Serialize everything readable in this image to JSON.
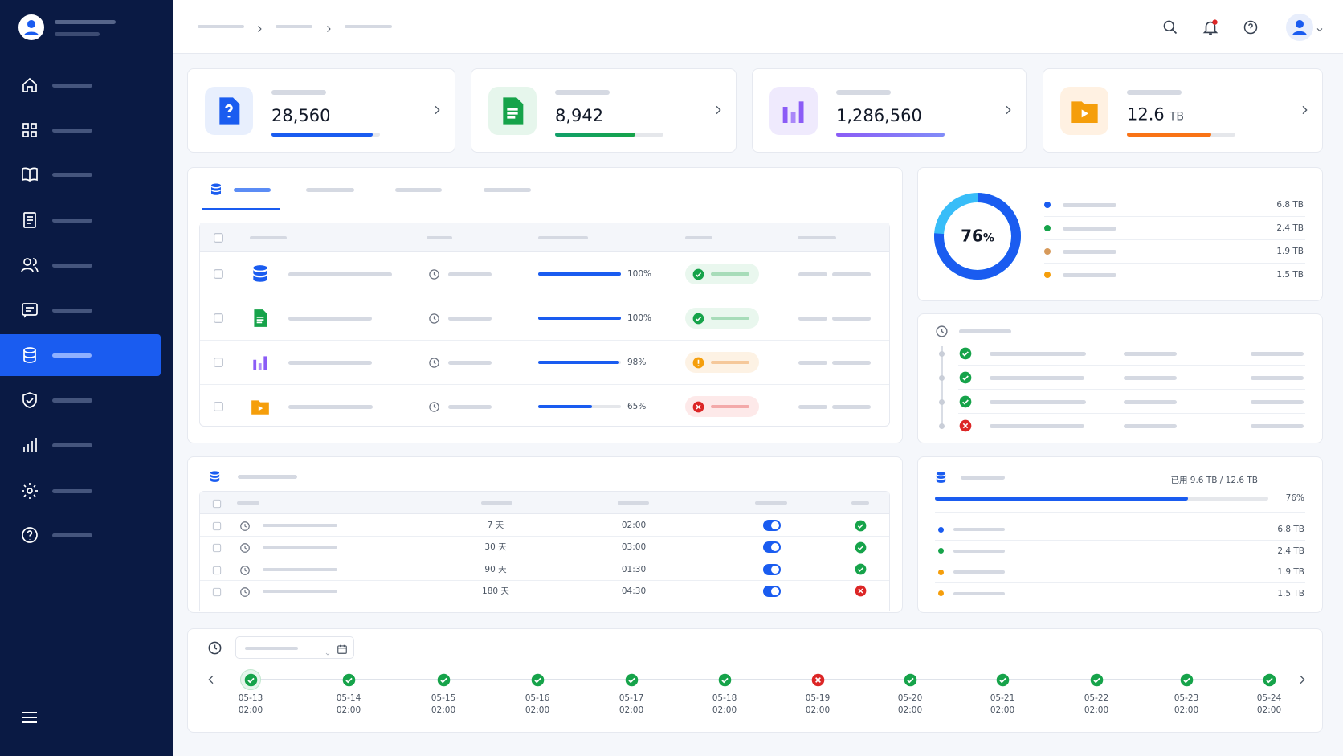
{
  "stats": [
    {
      "value": "28,560"
    },
    {
      "value": "8,942"
    },
    {
      "value": "1,286,560"
    },
    {
      "value": "12.6",
      "unit": "TB"
    }
  ],
  "backup_table": {
    "rows": [
      {
        "progress": {
          "value": 100,
          "label": "100%"
        }
      },
      {
        "progress": {
          "value": 100,
          "label": "100%"
        }
      },
      {
        "progress": {
          "value": 98,
          "label": "98%"
        }
      },
      {
        "progress": {
          "value": 65,
          "label": "65%"
        }
      }
    ]
  },
  "donut": {
    "percent": {
      "value": 76,
      "label": "76"
    },
    "unit": "%",
    "legend": [
      "6.8 TB",
      "2.4 TB",
      "1.9 TB",
      "1.5 TB"
    ]
  },
  "schedule": {
    "rows": [
      {
        "retention": "7 天",
        "time": "02:00"
      },
      {
        "retention": "30 天",
        "time": "03:00"
      },
      {
        "retention": "90 天",
        "time": "01:30"
      },
      {
        "retention": "180 天",
        "time": "04:30"
      }
    ]
  },
  "storage": {
    "used": "已用 9.6 TB / 12.6 TB",
    "percent": {
      "value": 76,
      "label": "76%"
    },
    "legend": [
      "6.8 TB",
      "2.4 TB",
      "1.9 TB",
      "1.5 TB"
    ]
  },
  "timeline": [
    {
      "date": "05-13",
      "time": "02:00"
    },
    {
      "date": "05-14",
      "time": "02:00"
    },
    {
      "date": "05-15",
      "time": "02:00"
    },
    {
      "date": "05-16",
      "time": "02:00"
    },
    {
      "date": "05-17",
      "time": "02:00"
    },
    {
      "date": "05-18",
      "time": "02:00"
    },
    {
      "date": "05-19",
      "time": "02:00"
    },
    {
      "date": "05-20",
      "time": "02:00"
    },
    {
      "date": "05-21",
      "time": "02:00"
    },
    {
      "date": "05-22",
      "time": "02:00"
    },
    {
      "date": "05-23",
      "time": "02:00"
    },
    {
      "date": "05-24",
      "time": "02:00"
    }
  ]
}
